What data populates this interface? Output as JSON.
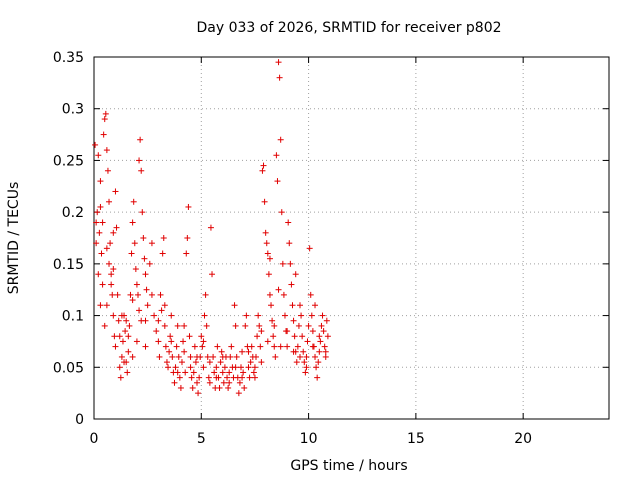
{
  "chart_data": {
    "type": "scatter",
    "title": "Day 033 of 2026, SRMTID for receiver p802",
    "xlabel": "GPS time / hours",
    "ylabel": "SRMTID / TECUs",
    "xlim": [
      0,
      24
    ],
    "ylim": [
      0,
      0.35
    ],
    "x_ticks": [
      0,
      5,
      10,
      15,
      20
    ],
    "x_tick_labels": [
      "0",
      "5",
      "10",
      "15",
      "20"
    ],
    "y_ticks": [
      0,
      0.05,
      0.1,
      0.15,
      0.2,
      0.25,
      0.3,
      0.35
    ],
    "y_tick_labels": [
      "0",
      "0.05",
      "0.1",
      "0.15",
      "0.2",
      "0.25",
      "0.3",
      "0.35"
    ],
    "grid": true,
    "marker": "plus",
    "series": [
      {
        "name": "SRMTID",
        "color": "#e00000",
        "points": [
          [
            0.05,
            0.265
          ],
          [
            0.1,
            0.17
          ],
          [
            0.15,
            0.2
          ],
          [
            0.2,
            0.255
          ],
          [
            0.25,
            0.18
          ],
          [
            0.3,
            0.205
          ],
          [
            0.35,
            0.16
          ],
          [
            0.4,
            0.19
          ],
          [
            0.45,
            0.275
          ],
          [
            0.5,
            0.29
          ],
          [
            0.55,
            0.295
          ],
          [
            0.6,
            0.26
          ],
          [
            0.65,
            0.24
          ],
          [
            0.7,
            0.21
          ],
          [
            0.75,
            0.17
          ],
          [
            0.8,
            0.14
          ],
          [
            0.85,
            0.12
          ],
          [
            0.9,
            0.1
          ],
          [
            0.95,
            0.08
          ],
          [
            1.0,
            0.07
          ],
          [
            0.1,
            0.19
          ],
          [
            0.2,
            0.14
          ],
          [
            0.3,
            0.23
          ],
          [
            0.4,
            0.13
          ],
          [
            0.5,
            0.09
          ],
          [
            0.6,
            0.11
          ],
          [
            0.7,
            0.15
          ],
          [
            0.8,
            0.13
          ],
          [
            0.9,
            0.18
          ],
          [
            1.0,
            0.22
          ],
          [
            1.05,
            0.185
          ],
          [
            1.1,
            0.12
          ],
          [
            1.15,
            0.095
          ],
          [
            1.2,
            0.05
          ],
          [
            1.25,
            0.04
          ],
          [
            1.3,
            0.06
          ],
          [
            1.35,
            0.075
          ],
          [
            1.4,
            0.1
          ],
          [
            1.45,
            0.085
          ],
          [
            1.5,
            0.055
          ],
          [
            1.55,
            0.045
          ],
          [
            1.6,
            0.065
          ],
          [
            1.65,
            0.09
          ],
          [
            1.7,
            0.12
          ],
          [
            1.75,
            0.16
          ],
          [
            1.8,
            0.19
          ],
          [
            1.85,
            0.21
          ],
          [
            1.9,
            0.17
          ],
          [
            1.95,
            0.145
          ],
          [
            2.0,
            0.13
          ],
          [
            2.05,
            0.12
          ],
          [
            2.1,
            0.25
          ],
          [
            2.15,
            0.27
          ],
          [
            2.2,
            0.24
          ],
          [
            2.25,
            0.2
          ],
          [
            2.3,
            0.175
          ],
          [
            2.35,
            0.155
          ],
          [
            2.4,
            0.14
          ],
          [
            2.45,
            0.125
          ],
          [
            2.5,
            0.11
          ],
          [
            1.3,
            0.1
          ],
          [
            1.4,
            0.055
          ],
          [
            1.6,
            0.08
          ],
          [
            1.8,
            0.115
          ],
          [
            2.0,
            0.075
          ],
          [
            2.2,
            0.095
          ],
          [
            2.4,
            0.07
          ],
          [
            2.6,
            0.15
          ],
          [
            2.7,
            0.17
          ],
          [
            2.8,
            0.1
          ],
          [
            2.9,
            0.085
          ],
          [
            3.0,
            0.075
          ],
          [
            3.05,
            0.06
          ],
          [
            3.1,
            0.12
          ],
          [
            3.15,
            0.105
          ],
          [
            3.2,
            0.16
          ],
          [
            3.25,
            0.175
          ],
          [
            3.3,
            0.09
          ],
          [
            3.35,
            0.07
          ],
          [
            3.4,
            0.055
          ],
          [
            3.45,
            0.05
          ],
          [
            3.5,
            0.065
          ],
          [
            3.55,
            0.08
          ],
          [
            3.6,
            0.1
          ],
          [
            3.65,
            0.06
          ],
          [
            3.7,
            0.045
          ],
          [
            3.75,
            0.035
          ],
          [
            3.8,
            0.05
          ],
          [
            3.85,
            0.07
          ],
          [
            3.9,
            0.09
          ],
          [
            3.95,
            0.06
          ],
          [
            4.0,
            0.04
          ],
          [
            4.05,
            0.03
          ],
          [
            4.1,
            0.055
          ],
          [
            4.15,
            0.075
          ],
          [
            4.2,
            0.065
          ],
          [
            4.25,
            0.045
          ],
          [
            4.3,
            0.16
          ],
          [
            4.35,
            0.175
          ],
          [
            4.4,
            0.205
          ],
          [
            4.45,
            0.08
          ],
          [
            4.5,
            0.06
          ],
          [
            4.55,
            0.04
          ],
          [
            4.6,
            0.03
          ],
          [
            4.65,
            0.045
          ],
          [
            4.7,
            0.07
          ],
          [
            4.75,
            0.055
          ],
          [
            4.8,
            0.035
          ],
          [
            4.85,
            0.025
          ],
          [
            4.9,
            0.04
          ],
          [
            4.95,
            0.06
          ],
          [
            5.0,
            0.08
          ],
          [
            5.05,
            0.07
          ],
          [
            5.1,
            0.05
          ],
          [
            5.15,
            0.1
          ],
          [
            5.2,
            0.12
          ],
          [
            5.25,
            0.09
          ],
          [
            5.3,
            0.06
          ],
          [
            5.35,
            0.04
          ],
          [
            5.4,
            0.035
          ],
          [
            5.45,
            0.185
          ],
          [
            5.5,
            0.14
          ],
          [
            5.55,
            0.06
          ],
          [
            5.6,
            0.045
          ],
          [
            5.65,
            0.03
          ],
          [
            5.7,
            0.05
          ],
          [
            5.75,
            0.07
          ],
          [
            5.8,
            0.04
          ],
          [
            5.85,
            0.03
          ],
          [
            5.9,
            0.055
          ],
          [
            5.95,
            0.065
          ],
          [
            6.0,
            0.045
          ],
          [
            6.05,
            0.035
          ],
          [
            6.1,
            0.05
          ],
          [
            6.15,
            0.06
          ],
          [
            6.2,
            0.04
          ],
          [
            6.25,
            0.03
          ],
          [
            6.3,
            0.045
          ],
          [
            6.35,
            0.06
          ],
          [
            6.4,
            0.07
          ],
          [
            6.45,
            0.05
          ],
          [
            6.5,
            0.04
          ],
          [
            6.55,
            0.11
          ],
          [
            6.6,
            0.09
          ],
          [
            6.65,
            0.06
          ],
          [
            6.7,
            0.04
          ],
          [
            6.75,
            0.025
          ],
          [
            6.8,
            0.035
          ],
          [
            6.85,
            0.05
          ],
          [
            6.9,
            0.065
          ],
          [
            6.95,
            0.045
          ],
          [
            7.0,
            0.03
          ],
          [
            7.05,
            0.09
          ],
          [
            7.1,
            0.1
          ],
          [
            7.15,
            0.07
          ],
          [
            7.2,
            0.05
          ],
          [
            7.25,
            0.04
          ],
          [
            7.3,
            0.055
          ],
          [
            7.35,
            0.07
          ],
          [
            7.4,
            0.06
          ],
          [
            7.45,
            0.045
          ],
          [
            7.5,
            0.04
          ],
          [
            7.55,
            0.06
          ],
          [
            7.6,
            0.08
          ],
          [
            7.65,
            0.1
          ],
          [
            7.7,
            0.09
          ],
          [
            7.75,
            0.07
          ],
          [
            7.8,
            0.085
          ],
          [
            7.85,
            0.24
          ],
          [
            7.9,
            0.245
          ],
          [
            7.95,
            0.21
          ],
          [
            8.0,
            0.18
          ],
          [
            8.05,
            0.17
          ],
          [
            8.1,
            0.16
          ],
          [
            8.15,
            0.14
          ],
          [
            8.2,
            0.12
          ],
          [
            8.25,
            0.11
          ],
          [
            8.3,
            0.095
          ],
          [
            8.35,
            0.08
          ],
          [
            8.4,
            0.07
          ],
          [
            8.45,
            0.06
          ],
          [
            8.5,
            0.255
          ],
          [
            8.55,
            0.23
          ],
          [
            8.6,
            0.345
          ],
          [
            8.65,
            0.33
          ],
          [
            8.7,
            0.27
          ],
          [
            8.75,
            0.2
          ],
          [
            8.8,
            0.15
          ],
          [
            8.85,
            0.12
          ],
          [
            8.9,
            0.1
          ],
          [
            8.95,
            0.085
          ],
          [
            9.0,
            0.07
          ],
          [
            9.05,
            0.19
          ],
          [
            9.1,
            0.17
          ],
          [
            9.15,
            0.15
          ],
          [
            9.2,
            0.13
          ],
          [
            9.25,
            0.11
          ],
          [
            9.3,
            0.095
          ],
          [
            9.35,
            0.08
          ],
          [
            9.4,
            0.065
          ],
          [
            9.45,
            0.055
          ],
          [
            9.5,
            0.07
          ],
          [
            9.55,
            0.09
          ],
          [
            9.6,
            0.11
          ],
          [
            9.65,
            0.1
          ],
          [
            9.7,
            0.08
          ],
          [
            9.75,
            0.065
          ],
          [
            9.8,
            0.055
          ],
          [
            9.85,
            0.045
          ],
          [
            9.9,
            0.06
          ],
          [
            9.95,
            0.075
          ],
          [
            10.0,
            0.09
          ],
          [
            10.05,
            0.165
          ],
          [
            10.1,
            0.12
          ],
          [
            10.15,
            0.1
          ],
          [
            10.2,
            0.085
          ],
          [
            10.25,
            0.07
          ],
          [
            10.3,
            0.06
          ],
          [
            10.35,
            0.05
          ],
          [
            10.4,
            0.04
          ],
          [
            10.45,
            0.055
          ],
          [
            10.5,
            0.065
          ],
          [
            10.55,
            0.075
          ],
          [
            10.6,
            0.09
          ],
          [
            10.65,
            0.1
          ],
          [
            10.7,
            0.085
          ],
          [
            10.75,
            0.07
          ],
          [
            10.8,
            0.06
          ],
          [
            10.85,
            0.095
          ],
          [
            10.9,
            0.08
          ],
          [
            0.3,
            0.11
          ],
          [
            0.6,
            0.165
          ],
          [
            0.9,
            0.145
          ],
          [
            1.2,
            0.08
          ],
          [
            1.5,
            0.095
          ],
          [
            1.8,
            0.06
          ],
          [
            2.1,
            0.105
          ],
          [
            2.4,
            0.095
          ],
          [
            2.7,
            0.12
          ],
          [
            3.0,
            0.095
          ],
          [
            3.3,
            0.11
          ],
          [
            3.6,
            0.075
          ],
          [
            3.9,
            0.045
          ],
          [
            4.2,
            0.09
          ],
          [
            4.5,
            0.05
          ],
          [
            4.8,
            0.06
          ],
          [
            5.1,
            0.075
          ],
          [
            5.4,
            0.055
          ],
          [
            5.7,
            0.04
          ],
          [
            6.0,
            0.06
          ],
          [
            6.3,
            0.035
          ],
          [
            6.6,
            0.05
          ],
          [
            6.9,
            0.04
          ],
          [
            7.2,
            0.065
          ],
          [
            7.5,
            0.05
          ],
          [
            7.8,
            0.055
          ],
          [
            8.1,
            0.075
          ],
          [
            8.4,
            0.09
          ],
          [
            8.7,
            0.07
          ],
          [
            9.0,
            0.085
          ],
          [
            9.3,
            0.065
          ],
          [
            9.6,
            0.06
          ],
          [
            9.9,
            0.05
          ],
          [
            10.2,
            0.07
          ],
          [
            10.5,
            0.08
          ],
          [
            10.8,
            0.065
          ],
          [
            8.2,
            0.155
          ],
          [
            8.6,
            0.125
          ],
          [
            9.4,
            0.14
          ],
          [
            10.3,
            0.11
          ]
        ]
      }
    ]
  }
}
